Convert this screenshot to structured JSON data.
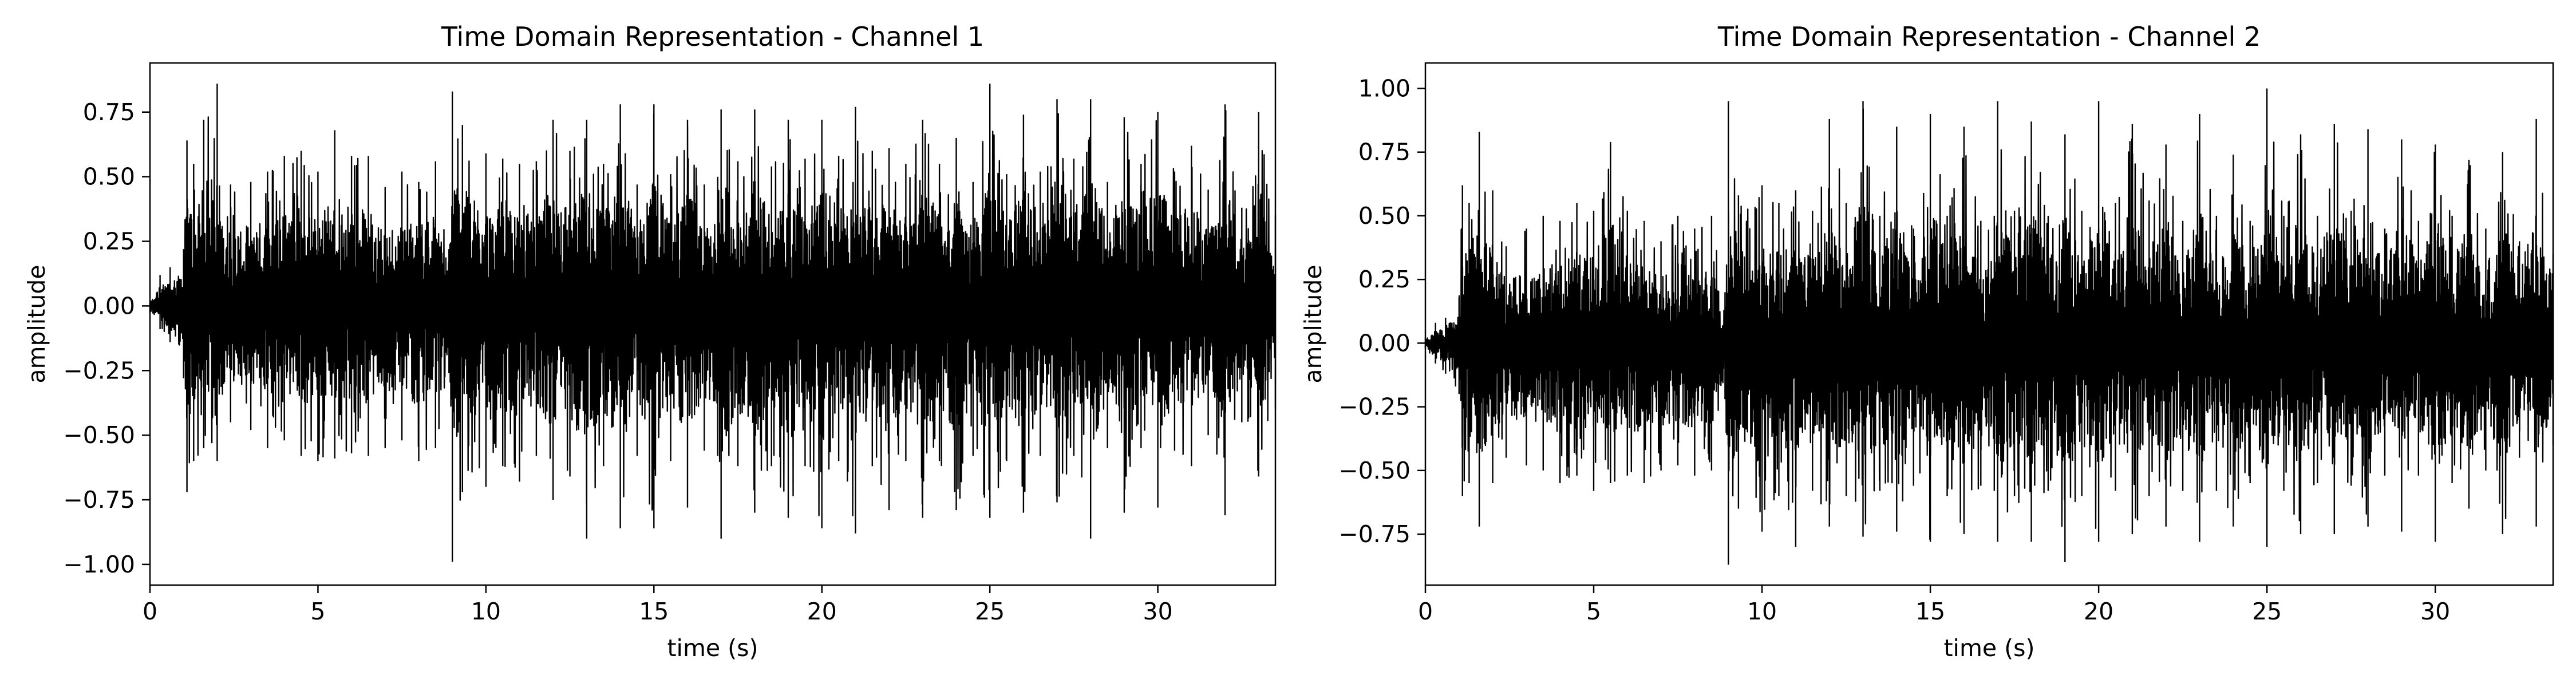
{
  "chart_data": [
    {
      "type": "line",
      "title": "Time Domain Representation - Channel 1",
      "xlabel": "time (s)",
      "ylabel": "amplitude",
      "xlim": [
        0,
        33.5
      ],
      "ylim": [
        -1.08,
        0.94
      ],
      "grid": false,
      "legend": "none",
      "line_color": "#000000",
      "x_ticks": [
        0,
        5,
        10,
        15,
        20,
        25,
        30
      ],
      "x_tick_labels": [
        "0",
        "5",
        "10",
        "15",
        "20",
        "25",
        "30"
      ],
      "y_ticks": [
        0.75,
        0.5,
        0.25,
        0.0,
        -0.25,
        -0.5,
        -0.75,
        -1.0
      ],
      "y_tick_labels": [
        "0.75",
        "0.50",
        "0.25",
        "0.00",
        "−0.25",
        "−0.50",
        "−0.75",
        "−1.00"
      ],
      "series": [
        {
          "x": [
            0,
            0.3,
            0.6,
            1.0,
            1.1,
            1.3,
            1.6,
            2.0,
            2.4,
            3.0,
            3.5,
            4.0,
            4.5,
            5.0,
            5.5,
            6.0,
            6.5,
            7.0,
            7.5,
            8.0,
            8.5,
            8.9,
            9.0,
            9.3,
            10.0,
            10.5,
            11.0,
            11.5,
            12.0,
            12.5,
            13.0,
            13.5,
            14.0,
            14.5,
            15.0,
            15.5,
            16.0,
            16.5,
            16.9,
            17.0,
            17.5,
            18.0,
            18.5,
            19.0,
            19.5,
            20.0,
            20.5,
            21.0,
            21.5,
            22.0,
            22.5,
            23.0,
            23.5,
            24.0,
            24.5,
            25.0,
            25.5,
            26.0,
            26.5,
            27.0,
            27.5,
            28.0,
            28.5,
            29.0,
            29.5,
            30.0,
            30.5,
            31.0,
            31.5,
            32.0,
            32.5,
            33.0,
            33.5
          ],
          "y_max": [
            0.02,
            0.12,
            0.15,
            0.22,
            0.64,
            0.55,
            0.72,
            0.86,
            0.47,
            0.48,
            0.52,
            0.58,
            0.6,
            0.52,
            0.68,
            0.58,
            0.58,
            0.46,
            0.52,
            0.48,
            0.56,
            0.22,
            0.83,
            0.7,
            0.59,
            0.57,
            0.55,
            0.56,
            0.72,
            0.6,
            0.72,
            0.55,
            0.78,
            0.47,
            0.78,
            0.51,
            0.72,
            0.47,
            0.5,
            0.76,
            0.56,
            0.76,
            0.54,
            0.72,
            0.57,
            0.72,
            0.58,
            0.77,
            0.6,
            0.61,
            0.55,
            0.72,
            0.55,
            0.65,
            0.48,
            0.86,
            0.51,
            0.74,
            0.52,
            0.8,
            0.57,
            0.8,
            0.48,
            0.73,
            0.55,
            0.75,
            0.52,
            0.62,
            0.45,
            0.78,
            0.38,
            0.75,
            0.35
          ],
          "y_min": [
            -0.03,
            -0.09,
            -0.14,
            -0.28,
            -0.72,
            -0.6,
            -0.55,
            -0.6,
            -0.45,
            -0.48,
            -0.55,
            -0.52,
            -0.58,
            -0.6,
            -0.59,
            -0.57,
            -0.58,
            -0.55,
            -0.52,
            -0.6,
            -0.55,
            -0.26,
            -0.99,
            -0.72,
            -0.7,
            -0.62,
            -0.68,
            -0.58,
            -0.75,
            -0.66,
            -0.9,
            -0.62,
            -0.86,
            -0.58,
            -0.86,
            -0.6,
            -0.78,
            -0.56,
            -0.58,
            -0.9,
            -0.62,
            -0.8,
            -0.62,
            -0.82,
            -0.62,
            -0.86,
            -0.6,
            -0.88,
            -0.62,
            -0.79,
            -0.6,
            -0.82,
            -0.6,
            -0.79,
            -0.58,
            -0.82,
            -0.6,
            -0.8,
            -0.58,
            -0.76,
            -0.58,
            -0.9,
            -0.55,
            -0.8,
            -0.55,
            -0.78,
            -0.56,
            -0.62,
            -0.5,
            -0.81,
            -0.45,
            -0.66,
            -0.4
          ]
        }
      ]
    },
    {
      "type": "line",
      "title": "Time Domain Representation - Channel 2",
      "xlabel": "time (s)",
      "ylabel": "amplitude",
      "xlim": [
        0,
        33.5
      ],
      "ylim": [
        -0.95,
        1.1
      ],
      "grid": false,
      "legend": "none",
      "line_color": "#000000",
      "x_ticks": [
        0,
        5,
        10,
        15,
        20,
        25,
        30
      ],
      "x_tick_labels": [
        "0",
        "5",
        "10",
        "15",
        "20",
        "25",
        "30"
      ],
      "y_ticks": [
        1.0,
        0.75,
        0.5,
        0.25,
        0.0,
        -0.25,
        -0.5,
        -0.75
      ],
      "y_tick_labels": [
        "1.00",
        "0.75",
        "0.50",
        "0.25",
        "0.00",
        "−0.25",
        "−0.50",
        "−0.75"
      ],
      "series": [
        {
          "x": [
            0,
            0.3,
            0.6,
            1.0,
            1.1,
            1.3,
            1.6,
            2.0,
            2.4,
            3.0,
            3.5,
            4.0,
            4.5,
            5.0,
            5.5,
            6.0,
            6.5,
            7.0,
            7.5,
            8.0,
            8.5,
            8.9,
            9.0,
            9.3,
            10.0,
            10.5,
            11.0,
            11.5,
            12.0,
            12.5,
            13.0,
            13.5,
            14.0,
            14.5,
            15.0,
            15.5,
            16.0,
            16.5,
            16.9,
            17.0,
            17.5,
            18.0,
            18.5,
            19.0,
            19.5,
            20.0,
            20.5,
            21.0,
            21.5,
            22.0,
            22.5,
            23.0,
            23.5,
            24.0,
            24.5,
            25.0,
            25.5,
            26.0,
            26.5,
            27.0,
            27.5,
            28.0,
            28.5,
            29.0,
            29.5,
            30.0,
            30.5,
            31.0,
            31.5,
            32.0,
            32.5,
            33.0,
            33.5
          ],
          "y_max": [
            0.02,
            0.08,
            0.1,
            0.18,
            0.62,
            0.55,
            0.83,
            0.6,
            0.38,
            0.45,
            0.5,
            0.48,
            0.55,
            0.52,
            0.79,
            0.52,
            0.48,
            0.4,
            0.5,
            0.45,
            0.5,
            0.2,
            0.95,
            0.58,
            0.62,
            0.55,
            0.6,
            0.52,
            0.88,
            0.55,
            0.95,
            0.5,
            0.85,
            0.45,
            0.9,
            0.5,
            0.85,
            0.48,
            0.5,
            0.95,
            0.52,
            0.87,
            0.5,
            0.82,
            0.52,
            0.95,
            0.55,
            0.86,
            0.56,
            0.78,
            0.48,
            0.9,
            0.5,
            0.74,
            0.48,
            1.0,
            0.5,
            0.82,
            0.5,
            0.86,
            0.52,
            0.84,
            0.45,
            0.8,
            0.48,
            0.78,
            0.5,
            0.72,
            0.45,
            0.75,
            0.4,
            0.88,
            0.35
          ],
          "y_min": [
            -0.02,
            -0.08,
            -0.12,
            -0.2,
            -0.6,
            -0.55,
            -0.72,
            -0.55,
            -0.45,
            -0.48,
            -0.5,
            -0.55,
            -0.52,
            -0.58,
            -0.55,
            -0.52,
            -0.55,
            -0.5,
            -0.48,
            -0.52,
            -0.5,
            -0.22,
            -0.87,
            -0.65,
            -0.74,
            -0.6,
            -0.8,
            -0.58,
            -0.72,
            -0.6,
            -0.76,
            -0.58,
            -0.74,
            -0.56,
            -0.78,
            -0.6,
            -0.75,
            -0.56,
            -0.58,
            -0.78,
            -0.6,
            -0.78,
            -0.58,
            -0.86,
            -0.6,
            -0.78,
            -0.58,
            -0.75,
            -0.6,
            -0.72,
            -0.58,
            -0.78,
            -0.58,
            -0.72,
            -0.55,
            -0.8,
            -0.58,
            -0.75,
            -0.55,
            -0.75,
            -0.56,
            -0.72,
            -0.52,
            -0.74,
            -0.52,
            -0.78,
            -0.55,
            -0.65,
            -0.5,
            -0.75,
            -0.45,
            -0.72,
            -0.4
          ]
        }
      ]
    }
  ]
}
